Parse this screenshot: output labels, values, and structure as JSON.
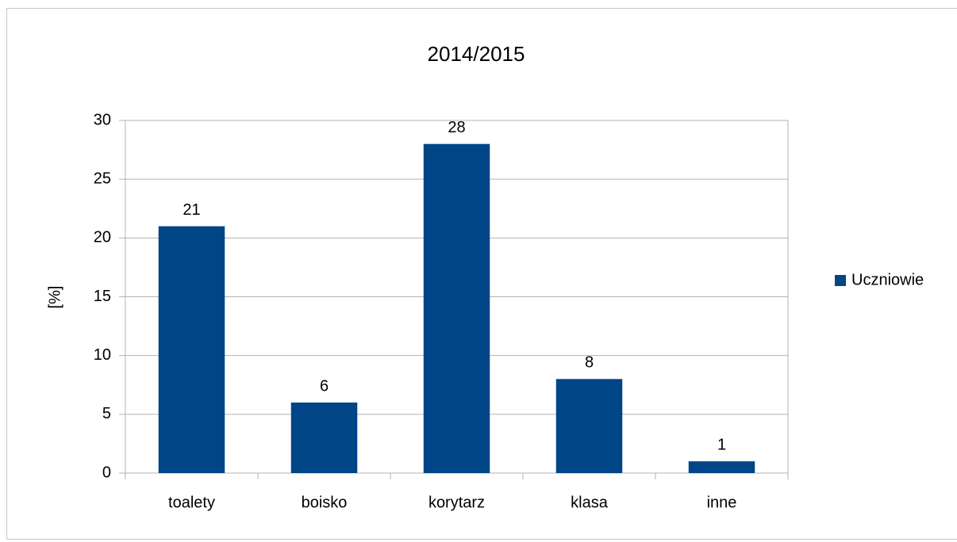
{
  "chart_data": {
    "type": "bar",
    "title": "2014/2015",
    "y_label": "[%]",
    "categories": [
      "toalety",
      "boisko",
      "korytarz",
      "klasa",
      "inne"
    ],
    "series": [
      {
        "name": "Uczniowie",
        "color": "#004586",
        "values": [
          21,
          6,
          28,
          8,
          1
        ]
      }
    ],
    "ylim": [
      0,
      30
    ],
    "yticks": [
      0,
      5,
      10,
      15,
      20,
      25,
      30
    ],
    "grid": true,
    "data_labels": true,
    "legend": "right"
  }
}
